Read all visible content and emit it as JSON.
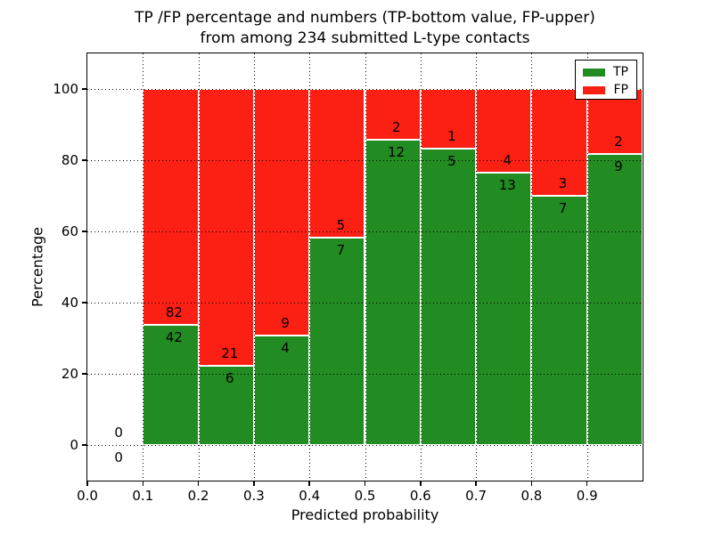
{
  "figure": {
    "title_line1": "TP /FP percentage and numbers (TP-bottom value, FP-upper)",
    "title_line2": "from among 234 submitted L-type contacts"
  },
  "axes": {
    "xlabel": "Predicted probability",
    "ylabel": "Percentage"
  },
  "legend": {
    "position": "upper right",
    "entries": [
      {
        "label": "TP",
        "color": "#228b22"
      },
      {
        "label": "FP",
        "color": "#fb1f14"
      }
    ]
  },
  "chart_data": {
    "type": "bar",
    "stacked": true,
    "normalization": "each bin stacked to 100%; printed numbers are raw TP/FP counts",
    "title": "TP /FP percentage and numbers (TP-bottom value, FP-upper) from among 234 submitted L-type contacts",
    "xlabel": "Predicted probability",
    "ylabel": "Percentage",
    "xlim": [
      0.0,
      1.0
    ],
    "ylim": [
      -10,
      110
    ],
    "xtick_labels": [
      "0.0",
      "0.1",
      "0.2",
      "0.3",
      "0.4",
      "0.5",
      "0.6",
      "0.7",
      "0.8",
      "0.9"
    ],
    "ytick_labels": [
      "0",
      "20",
      "40",
      "60",
      "80",
      "100"
    ],
    "grid": "dotted black, drawn above bars",
    "legend_position": "upper right",
    "total_contacts": 234,
    "bin_width": 0.1,
    "series": [
      {
        "name": "TP",
        "color": "#228b22"
      },
      {
        "name": "FP",
        "color": "#fb1f14"
      }
    ],
    "bins": [
      {
        "range": [
          0.0,
          0.1
        ],
        "tp": 0,
        "fp": 0
      },
      {
        "range": [
          0.1,
          0.2
        ],
        "tp": 42,
        "fp": 82
      },
      {
        "range": [
          0.2,
          0.3
        ],
        "tp": 6,
        "fp": 21
      },
      {
        "range": [
          0.3,
          0.4
        ],
        "tp": 4,
        "fp": 9
      },
      {
        "range": [
          0.4,
          0.5
        ],
        "tp": 7,
        "fp": 5
      },
      {
        "range": [
          0.5,
          0.6
        ],
        "tp": 12,
        "fp": 2
      },
      {
        "range": [
          0.6,
          0.7
        ],
        "tp": 5,
        "fp": 1
      },
      {
        "range": [
          0.7,
          0.8
        ],
        "tp": 13,
        "fp": 4
      },
      {
        "range": [
          0.8,
          0.9
        ],
        "tp": 7,
        "fp": 3
      },
      {
        "range": [
          0.9,
          1.0
        ],
        "tp": 9,
        "fp": 2
      }
    ],
    "colors": {
      "tp": "#228b22",
      "fp": "#fb1f14",
      "bar_edge": "#ffffff"
    }
  }
}
